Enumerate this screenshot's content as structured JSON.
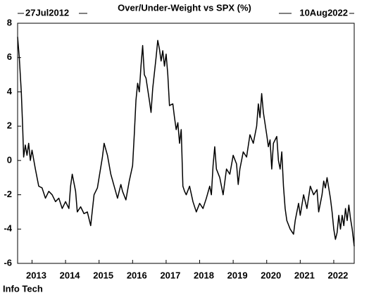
{
  "chart_data": {
    "type": "line",
    "title": "Over/Under-Weight vs SPX (%)",
    "start_label": "27Jul2012",
    "end_label": "10Aug2022",
    "footer": "Info Tech",
    "xlim": [
      2012.57,
      2022.61
    ],
    "xticks": [
      2013,
      2014,
      2015,
      2016,
      2017,
      2018,
      2019,
      2020,
      2021,
      2022
    ],
    "ylim": [
      -6,
      8
    ],
    "yticks": [
      -6,
      -4,
      -2,
      0,
      2,
      4,
      6,
      8
    ],
    "grid": false,
    "series": [
      {
        "color": "#000000",
        "x": [
          2012.57,
          2012.62,
          2012.68,
          2012.72,
          2012.75,
          2012.8,
          2012.85,
          2012.9,
          2012.95,
          2013.0,
          2013.1,
          2013.2,
          2013.3,
          2013.4,
          2013.5,
          2013.6,
          2013.7,
          2013.8,
          2013.9,
          2014.0,
          2014.1,
          2014.15,
          2014.2,
          2014.3,
          2014.35,
          2014.45,
          2014.55,
          2014.65,
          2014.75,
          2014.85,
          2014.95,
          2015.0,
          2015.1,
          2015.15,
          2015.25,
          2015.35,
          2015.45,
          2015.55,
          2015.65,
          2015.7,
          2015.8,
          2015.9,
          2016.0,
          2016.05,
          2016.1,
          2016.15,
          2016.2,
          2016.25,
          2016.3,
          2016.35,
          2016.4,
          2016.5,
          2016.55,
          2016.6,
          2016.7,
          2016.75,
          2016.8,
          2016.85,
          2016.9,
          2016.95,
          2017.0,
          2017.05,
          2017.1,
          2017.2,
          2017.25,
          2017.3,
          2017.35,
          2017.4,
          2017.45,
          2017.5,
          2017.55,
          2017.6,
          2017.7,
          2017.8,
          2017.9,
          2018.0,
          2018.1,
          2018.2,
          2018.3,
          2018.35,
          2018.4,
          2018.45,
          2018.5,
          2018.6,
          2018.7,
          2018.8,
          2018.9,
          2019.0,
          2019.1,
          2019.15,
          2019.2,
          2019.3,
          2019.4,
          2019.5,
          2019.6,
          2019.7,
          2019.75,
          2019.8,
          2019.85,
          2019.9,
          2020.0,
          2020.05,
          2020.1,
          2020.15,
          2020.2,
          2020.3,
          2020.35,
          2020.4,
          2020.45,
          2020.5,
          2020.55,
          2020.6,
          2020.7,
          2020.8,
          2020.85,
          2020.95,
          2021.0,
          2021.1,
          2021.2,
          2021.3,
          2021.4,
          2021.5,
          2021.55,
          2021.65,
          2021.7,
          2021.75,
          2021.8,
          2021.9,
          2021.95,
          2022.0,
          2022.05,
          2022.1,
          2022.15,
          2022.2,
          2022.25,
          2022.3,
          2022.35,
          2022.4,
          2022.45,
          2022.5,
          2022.55,
          2022.61
        ],
        "values": [
          7.2,
          6,
          4,
          2,
          0.2,
          0.9,
          0.3,
          1,
          0,
          0.6,
          -0.5,
          -1.5,
          -1.6,
          -2.2,
          -1.8,
          -2.0,
          -2.4,
          -2.2,
          -2.8,
          -2.4,
          -2.8,
          -1.5,
          -0.8,
          -1.8,
          -3.0,
          -2.7,
          -3.1,
          -3.0,
          -3.8,
          -2.0,
          -1.6,
          -1.0,
          0.2,
          1.0,
          0.3,
          -0.8,
          -1.5,
          -2.2,
          -1.4,
          -1.8,
          -2.3,
          -1.2,
          -0.3,
          1.5,
          3.5,
          4.5,
          4.0,
          5.5,
          6.7,
          5.0,
          4.8,
          3.5,
          2.8,
          4.2,
          6.0,
          7.0,
          6.5,
          5.8,
          6.4,
          5.5,
          6.2,
          5.0,
          3.2,
          3.3,
          2.5,
          1.8,
          2.2,
          1.0,
          1.8,
          -1.5,
          -1.8,
          -2.0,
          -1.5,
          -2.4,
          -3.0,
          -2.5,
          -2.8,
          -2.2,
          -1.5,
          -2.0,
          -0.3,
          0.8,
          -0.5,
          -1.0,
          -2.0,
          -0.5,
          -0.8,
          0.3,
          -0.2,
          -1.4,
          -0.5,
          0.5,
          0.2,
          1.5,
          1.0,
          2.0,
          3.3,
          2.5,
          3.9,
          2.8,
          1.5,
          0.8,
          1.2,
          -0.5,
          1.0,
          1.4,
          0.0,
          -0.5,
          0.5,
          -1.5,
          -2.8,
          -3.5,
          -4.0,
          -4.3,
          -3.5,
          -2.5,
          -3.2,
          -2.0,
          -2.8,
          -1.5,
          -2.0,
          -1.7,
          -3.0,
          -2.0,
          -1.2,
          -1.6,
          -1.0,
          -2.2,
          -3.0,
          -4.0,
          -4.6,
          -4.2,
          -3.2,
          -4.0,
          -3.2,
          -3.8,
          -2.8,
          -3.5,
          -2.6,
          -3.4,
          -4.0,
          -5.0
        ]
      }
    ]
  }
}
